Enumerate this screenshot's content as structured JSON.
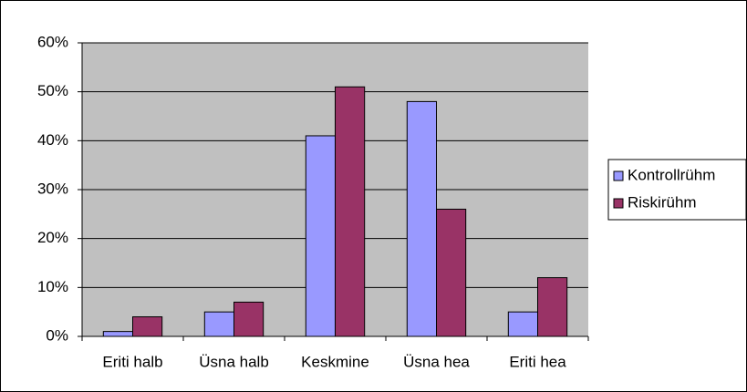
{
  "chart_data": {
    "type": "bar",
    "categories": [
      "Eriti halb",
      "Üsna halb",
      "Keskmine",
      "Üsna hea",
      "Eriti hea"
    ],
    "series": [
      {
        "name": "Kontrollrühm",
        "color": "#9999ff",
        "values": [
          1,
          5,
          41,
          48,
          5
        ]
      },
      {
        "name": "Riskirühm",
        "color": "#993366",
        "values": [
          4,
          7,
          51,
          26,
          12
        ]
      }
    ],
    "ylim": [
      0,
      60
    ],
    "yticks": [
      {
        "value": 0,
        "label": "0%"
      },
      {
        "value": 10,
        "label": "10%"
      },
      {
        "value": 20,
        "label": "20%"
      },
      {
        "value": 30,
        "label": "30%"
      },
      {
        "value": 40,
        "label": "40%"
      },
      {
        "value": 50,
        "label": "50%"
      },
      {
        "value": 60,
        "label": "60%"
      }
    ],
    "grid": true,
    "legend": "right"
  }
}
